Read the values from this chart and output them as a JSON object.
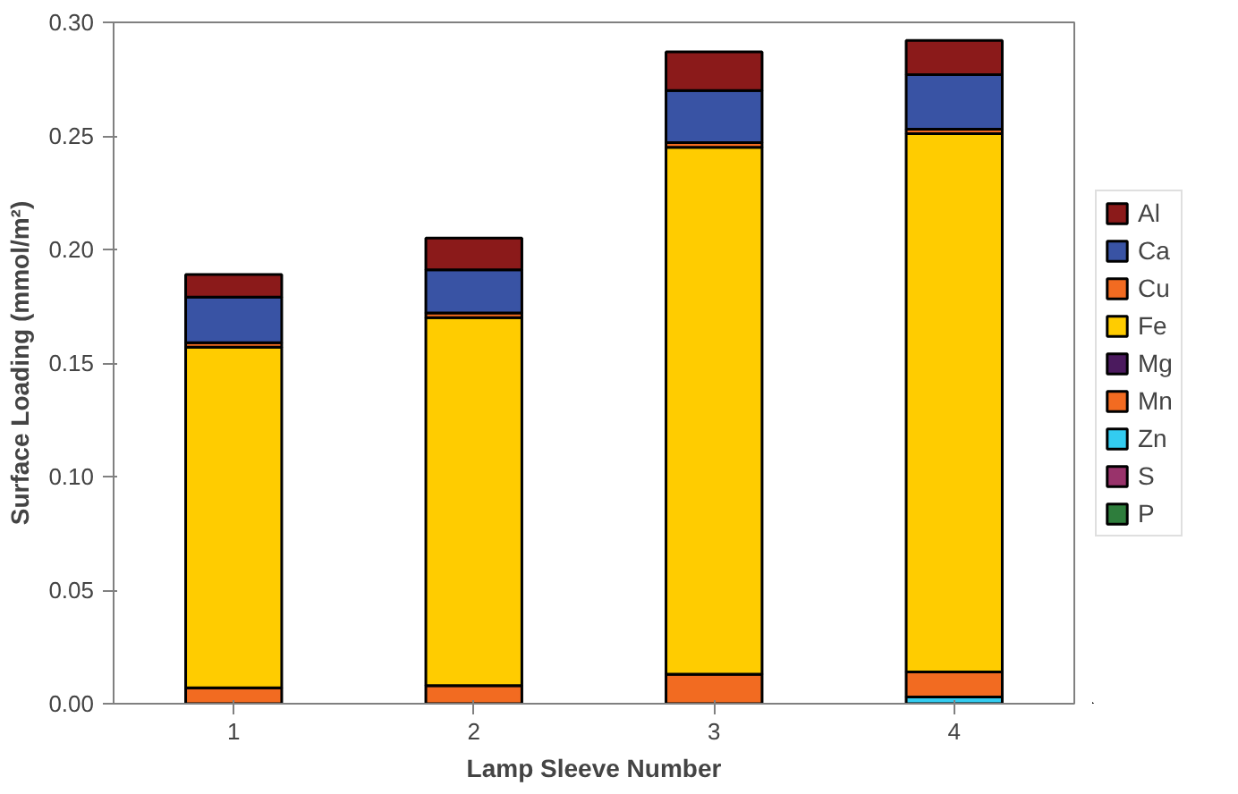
{
  "chart_data": {
    "type": "bar",
    "stacked": true,
    "xlabel": "Lamp Sleeve Number",
    "ylabel": "Surface Loading (mmol/m²)",
    "categories": [
      "1",
      "2",
      "3",
      "4"
    ],
    "ylim": [
      0,
      0.3
    ],
    "yticks": [
      {
        "value": 0,
        "label": "0.00"
      },
      {
        "value": 0.05,
        "label": "0.05"
      },
      {
        "value": 0.1,
        "label": "0.10"
      },
      {
        "value": 0.15,
        "label": "0.15"
      },
      {
        "value": 0.2,
        "label": "0.20"
      },
      {
        "value": 0.25,
        "label": "0.25"
      },
      {
        "value": 0.3,
        "label": "0.30"
      }
    ],
    "grid": false,
    "legend": "right",
    "series": [
      {
        "name": "P",
        "color": "#2e7d3c",
        "values": [
          null,
          null,
          null,
          null
        ]
      },
      {
        "name": "S",
        "color": "#99336b",
        "values": [
          null,
          null,
          null,
          null
        ]
      },
      {
        "name": "Zn",
        "color": "#33ccf0",
        "values": [
          null,
          null,
          null,
          0.003
        ]
      },
      {
        "name": "Mn",
        "color": "#f26b21",
        "values": [
          0.007,
          0.008,
          0.013,
          0.011
        ]
      },
      {
        "name": "Mg",
        "color": "#4b1a5e",
        "values": [
          null,
          null,
          null,
          null
        ]
      },
      {
        "name": "Fe",
        "color": "#ffcc00",
        "values": [
          0.15,
          0.162,
          0.232,
          0.237
        ]
      },
      {
        "name": "Cu",
        "color": "#f26b21",
        "values": [
          0.002,
          0.002,
          0.002,
          0.002
        ]
      },
      {
        "name": "Ca",
        "color": "#3953a4",
        "values": [
          0.02,
          0.019,
          0.023,
          0.024
        ]
      },
      {
        "name": "Al",
        "color": "#8b1a1a",
        "values": [
          0.01,
          0.014,
          0.017,
          0.015
        ]
      }
    ]
  }
}
